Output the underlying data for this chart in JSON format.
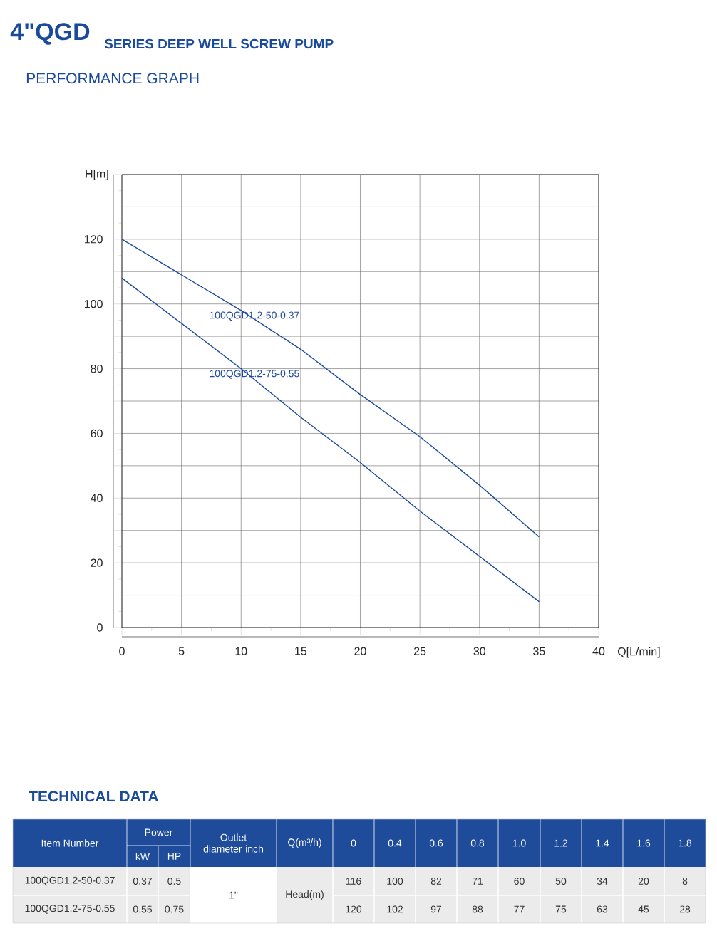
{
  "chart_data": {
    "type": "line",
    "title": "4\"QGD",
    "subtitle": "SERIES DEEP WELL SCREW PUMP",
    "annotations": [
      "PERFORMANCE GRAPH",
      "TECHNICAL DATA",
      "Item Number",
      "Power",
      "kW",
      "HP",
      "Outlet diameter inch",
      "Q(m³/h)",
      "0",
      "0.4",
      "0.6",
      "0.8",
      "1.0",
      "1.2",
      "1.4",
      "1.6",
      "1.8",
      "100QGD1.2-50-0.37",
      "0.37",
      "0.5",
      "1\"",
      "Head(m)",
      "116",
      "100",
      "82",
      "71",
      "60",
      "50",
      "34",
      "20",
      "8",
      "100QGD1.2-75-0.55",
      "0.55",
      "0.75",
      "120",
      "102",
      "97",
      "88",
      "77",
      "75",
      "63",
      "45",
      "28"
    ],
    "xlabel": "Q[L/min]",
    "ylabel": "H[m]",
    "x": [
      0,
      5,
      10,
      15,
      20,
      25,
      30,
      35
    ],
    "series": [
      {
        "name": "100QGD1.2-50-0.37",
        "color": "#1c4a9c",
        "values": [
          120,
          109,
          98,
          86,
          72,
          59,
          44,
          28
        ]
      },
      {
        "name": "100QGD1.2-75-0.55",
        "color": "#1c4a9c",
        "values": [
          108,
          94,
          80,
          65,
          51,
          36,
          22,
          8
        ]
      }
    ],
    "xlim": [
      0,
      40
    ],
    "xticks": [
      0,
      5,
      10,
      15,
      20,
      25,
      30,
      35,
      40
    ],
    "ylim": [
      0,
      140
    ],
    "yticks": [
      0,
      {
        "value": 10,
        "label": null
      },
      20,
      {
        "value": 30,
        "label": null
      },
      40,
      {
        "value": 50,
        "label": null
      },
      60,
      {
        "value": 70,
        "label": null
      },
      80,
      {
        "value": 90,
        "label": null
      },
      100,
      {
        "value": 110,
        "label": null
      },
      120,
      {
        "value": 130,
        "label": null
      },
      {
        "value": 140,
        "label": null
      }
    ],
    "grid": true,
    "legend": false,
    "marker": "none",
    "line_style": "solid"
  }
}
